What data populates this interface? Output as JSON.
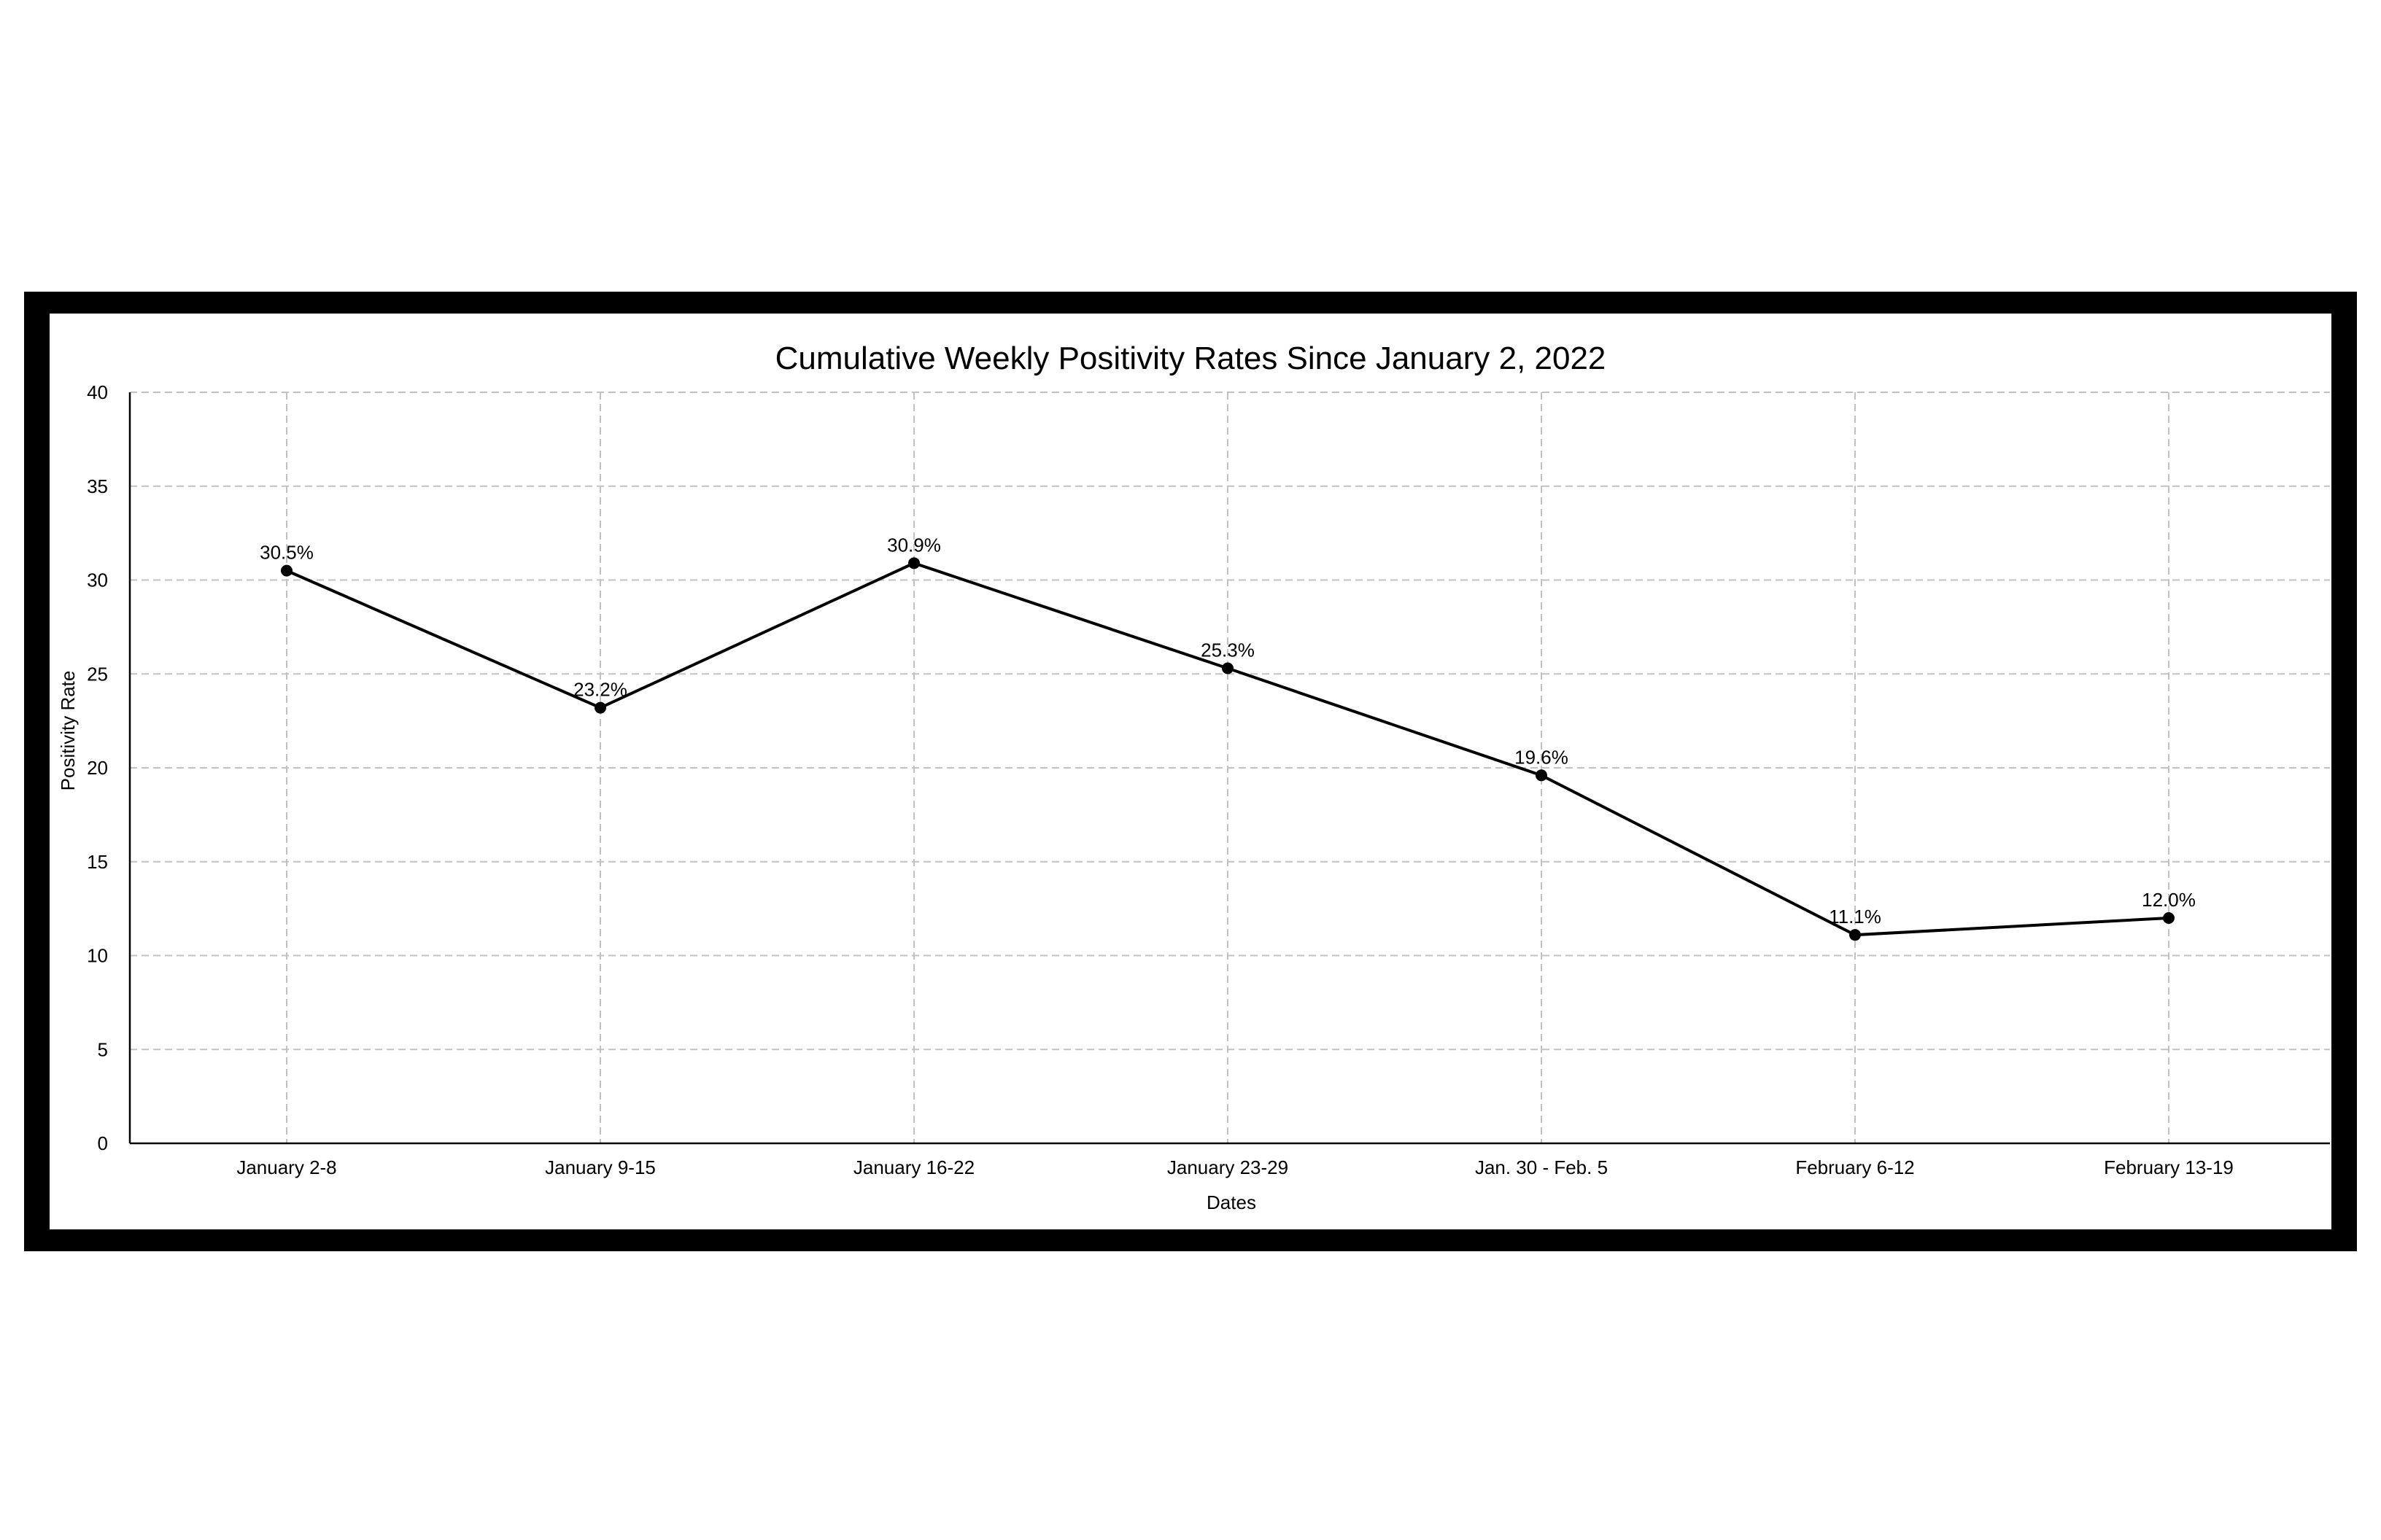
{
  "chart_data": {
    "type": "line",
    "title": "Cumulative Weekly Positivity Rates Since January 2, 2022",
    "xlabel": "Dates",
    "ylabel": "Positivity Rate",
    "categories": [
      "January 2-8",
      "January 9-15",
      "January 16-22",
      "January 23-29",
      "Jan. 30 - Feb. 5",
      "February 6-12",
      "February 13-19"
    ],
    "values": [
      30.5,
      23.2,
      30.9,
      25.3,
      19.6,
      11.1,
      12.0
    ],
    "data_labels": [
      "30.5%",
      "23.2%",
      "30.9%",
      "25.3%",
      "19.6%",
      "11.1%",
      "12.0%"
    ],
    "ylim": [
      0,
      40
    ],
    "yticks": [
      0,
      5,
      10,
      15,
      20,
      25,
      30,
      35,
      40
    ],
    "grid": true,
    "legend": "none",
    "colors": {
      "line": "#000000",
      "grid": "#c2c2c2",
      "frame": "#000000"
    }
  }
}
